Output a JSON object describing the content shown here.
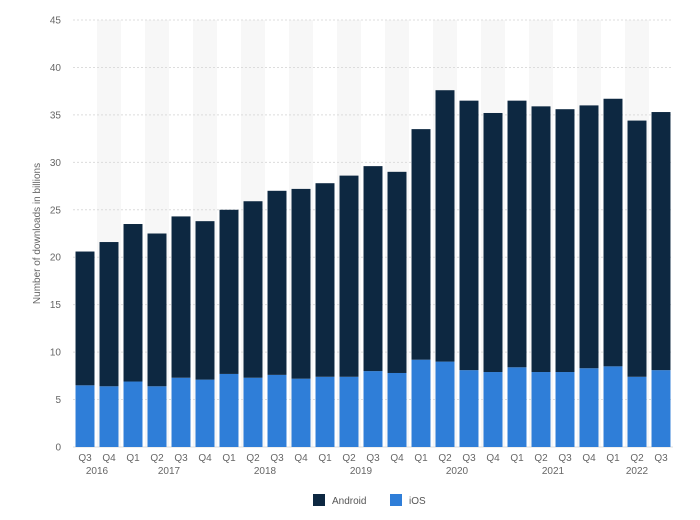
{
  "chart_data": {
    "type": "bar",
    "stacked": true,
    "categories": [
      "Q3",
      "Q4",
      "Q1",
      "Q2",
      "Q3",
      "Q4",
      "Q1",
      "Q2",
      "Q3",
      "Q4",
      "Q1",
      "Q2",
      "Q3",
      "Q4",
      "Q1",
      "Q2",
      "Q3",
      "Q4",
      "Q1",
      "Q2",
      "Q3",
      "Q4",
      "Q1",
      "Q2",
      "Q3"
    ],
    "years": [
      {
        "label": "2016",
        "start": 0,
        "end": 1
      },
      {
        "label": "2017",
        "start": 2,
        "end": 5
      },
      {
        "label": "2018",
        "start": 6,
        "end": 9
      },
      {
        "label": "2019",
        "start": 10,
        "end": 13
      },
      {
        "label": "2020",
        "start": 14,
        "end": 17
      },
      {
        "label": "2021",
        "start": 18,
        "end": 21
      },
      {
        "label": "2022",
        "start": 22,
        "end": 24
      }
    ],
    "series": [
      {
        "name": "iOS",
        "color": "#2f7ed8",
        "values": [
          6.5,
          6.4,
          6.9,
          6.4,
          7.3,
          7.1,
          7.7,
          7.3,
          7.6,
          7.2,
          7.4,
          7.4,
          8.0,
          7.8,
          9.2,
          9.0,
          8.1,
          7.9,
          8.4,
          7.9,
          7.9,
          8.3,
          8.5,
          7.4,
          8.1
        ]
      },
      {
        "name": "Android",
        "color": "#0d2841",
        "values": [
          14.1,
          15.2,
          16.6,
          16.1,
          17.0,
          16.7,
          17.3,
          18.6,
          19.4,
          20.0,
          20.4,
          21.2,
          21.6,
          21.2,
          24.3,
          28.6,
          28.4,
          27.3,
          28.1,
          28.0,
          27.7,
          27.7,
          28.2,
          27.0,
          27.2
        ]
      }
    ],
    "ylabel": "Number of downloads in billions",
    "ylim": [
      0,
      45
    ],
    "yticks": [
      0,
      5,
      10,
      15,
      20,
      25,
      30,
      35,
      40,
      45
    ],
    "grid": true,
    "legend": "bottom-center"
  }
}
